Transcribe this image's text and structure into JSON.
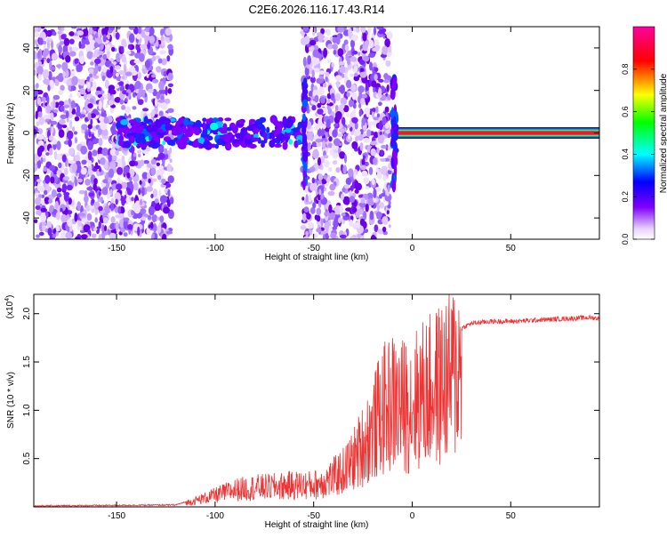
{
  "figure_title": "C2E6.2026.116.17.43.R14",
  "chart_data": [
    {
      "type": "heatmap",
      "title": "C2E6.2026.116.17.43.R14",
      "xlabel": "Height of straight line (km)",
      "ylabel": "Frequency (Hz)",
      "xlim": [
        -192,
        95
      ],
      "ylim": [
        -50,
        50
      ],
      "xticks": [
        -150,
        -100,
        -50,
        0,
        50
      ],
      "xtick_labels": [
        "-150",
        "-100",
        "-50",
        "0",
        "50"
      ],
      "yticks": [
        -40,
        -20,
        0,
        20,
        40
      ],
      "ytick_labels": [
        "-40",
        "-20",
        "0",
        "20",
        "40"
      ],
      "colorbar": {
        "label": "Normalized spectral amplitude",
        "range": [
          0,
          1
        ],
        "ticks": [
          0,
          0.2,
          0.4,
          0.6,
          0.8
        ],
        "tick_labels": [
          "0.0",
          "0.2",
          "0.4",
          "0.6",
          "0.8"
        ],
        "colors": [
          "#ffffff",
          "#8000ff",
          "#0000ff",
          "#00ffff",
          "#00ff00",
          "#ffff00",
          "#ff0000",
          "#ff00ff"
        ]
      },
      "bands": [
        {
          "x": [
            -192,
            -150
          ],
          "y": [
            -50,
            50
          ],
          "intensity": "low"
        },
        {
          "x": [
            -150,
            -122
          ],
          "y": [
            -50,
            50
          ],
          "intensity": "low"
        },
        {
          "x": [
            -150,
            -55
          ],
          "y": [
            -8,
            8
          ],
          "intensity": "mid"
        },
        {
          "x": [
            -56,
            -11
          ],
          "y": [
            -50,
            50
          ],
          "intensity": "low"
        },
        {
          "x": [
            -9,
            95
          ],
          "y": [
            -2,
            2
          ],
          "intensity": "high"
        }
      ],
      "grid": false
    },
    {
      "type": "line",
      "xlabel": "Height of straight line (km)",
      "ylabel": "SNR (10 * v/v)",
      "y_multiplier_label": "(x10",
      "y_multiplier_exp": "4",
      "y_multiplier_close": ")",
      "xlim": [
        -192,
        95
      ],
      "ylim": [
        0,
        2.2
      ],
      "xticks": [
        -150,
        -100,
        -50,
        0,
        50
      ],
      "xtick_labels": [
        "-150",
        "-100",
        "-50",
        "0",
        "50"
      ],
      "yticks": [
        0.5,
        1.0,
        1.5,
        2.0
      ],
      "ytick_labels": [
        "0.5",
        "1.0",
        "1.5",
        "2.0"
      ],
      "color": "#ee3333",
      "envelope": {
        "x": [
          -192,
          -120,
          -110,
          -100,
          -90,
          -80,
          -70,
          -60,
          -50,
          -40,
          -35,
          -30,
          -25,
          -20,
          -15,
          -12,
          -10,
          -5,
          0,
          5,
          10,
          15,
          20,
          25,
          30,
          40,
          50,
          60,
          70,
          80,
          90,
          95
        ],
        "y": [
          0.01,
          0.02,
          0.08,
          0.15,
          0.22,
          0.25,
          0.26,
          0.28,
          0.28,
          0.38,
          0.46,
          0.6,
          0.8,
          1.0,
          1.25,
          1.3,
          1.35,
          1.3,
          1.35,
          1.45,
          1.5,
          1.6,
          1.7,
          1.85,
          1.9,
          1.92,
          1.92,
          1.93,
          1.94,
          1.95,
          1.96,
          1.95
        ]
      },
      "grid": false
    }
  ]
}
